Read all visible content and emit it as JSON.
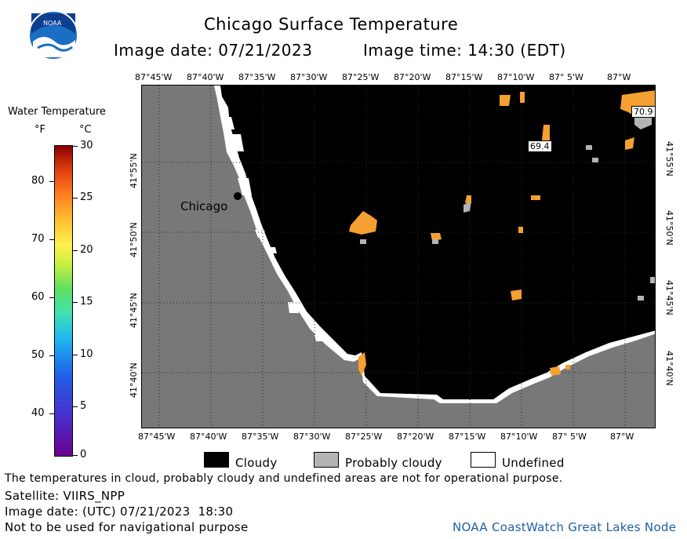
{
  "header": {
    "title": "Chicago Surface Temperature",
    "image_date": "Image date: 07/21/2023",
    "image_time": "Image time: 14:30 (EDT)"
  },
  "logo": {
    "text": "NOAA"
  },
  "legend": {
    "title": "Water Temperature",
    "unit_f": "°F",
    "unit_c": "°C",
    "f_ticks": [
      "80",
      "70",
      "60",
      "50",
      "40"
    ],
    "c_ticks": [
      "30",
      "25",
      "20",
      "15",
      "10",
      "5",
      "0"
    ]
  },
  "map": {
    "lon_labels": [
      "87°45'W",
      "87°40'W",
      "87°35'W",
      "87°30'W",
      "87°25'W",
      "87°20'W",
      "87°15'W",
      "87°10'W",
      "87° 5'W",
      "87°W"
    ],
    "lat_labels": [
      "41°55'N",
      "41°50'N",
      "41°45'N",
      "41°40'N"
    ],
    "city_label": "Chicago",
    "value_labels": [
      "70.9",
      "69.4"
    ]
  },
  "key": {
    "cloudy": "Cloudy",
    "probably_cloudy": "Probably cloudy",
    "undefined": "Undefined"
  },
  "footer": {
    "note": "The temperatures in cloud, probably cloudy and undefined areas are not for operational purpose.",
    "satellite": "Satellite: VIIRS_NPP",
    "utc_date": "Image date: (UTC) 07/21/2023  18:30",
    "nav": "Not to be used for navigational purpose",
    "credit": "NOAA CoastWatch Great Lakes Node"
  },
  "colors": {
    "land": "#787878",
    "cloud": "#000000",
    "probably_cloudy": "#b4b4b4",
    "warm_water": "#f5a030",
    "credit_text": "#1f5fa8"
  }
}
